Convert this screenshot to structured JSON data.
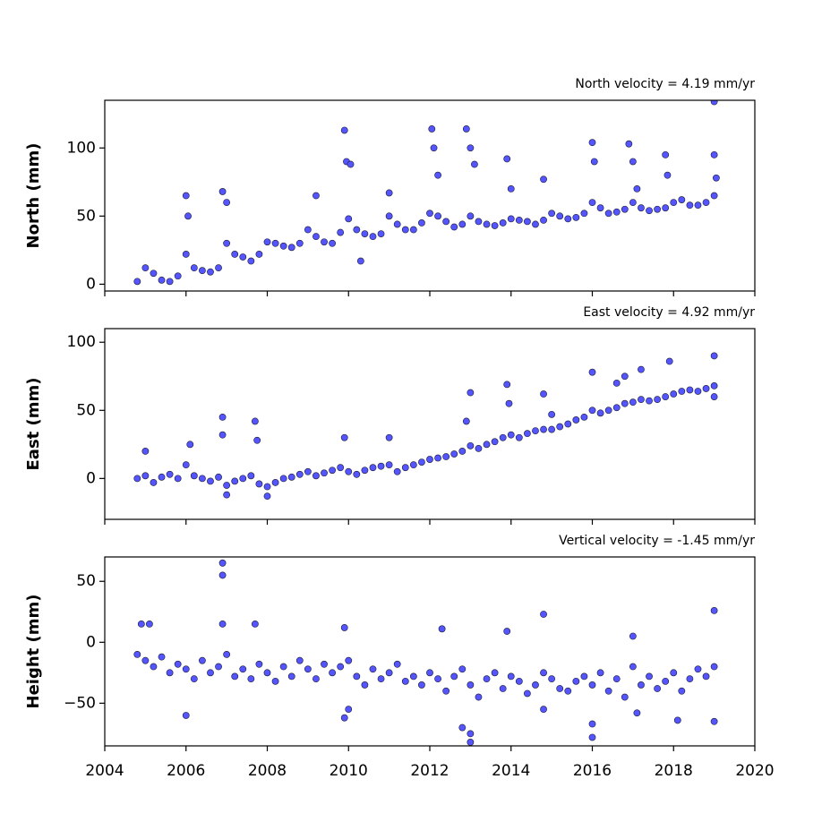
{
  "chart_data": [
    {
      "type": "scatter",
      "annotation": "North velocity = 4.19 mm/yr",
      "y_label": "North (mm)",
      "color": "#5555ff",
      "x": [
        2004.8,
        2005.0,
        2005.2,
        2005.4,
        2005.6,
        2005.8,
        2006.0,
        2006.2,
        2006.4,
        2006.6,
        2006.8,
        2007.0,
        2007.2,
        2007.4,
        2007.6,
        2007.8,
        2008.0,
        2008.2,
        2008.4,
        2008.6,
        2008.8,
        2009.0,
        2009.2,
        2009.4,
        2009.6,
        2009.8,
        2010.0,
        2010.2,
        2010.4,
        2010.6,
        2010.8,
        2011.0,
        2011.2,
        2011.4,
        2011.6,
        2011.8,
        2012.0,
        2012.2,
        2012.4,
        2012.6,
        2012.8,
        2013.0,
        2013.2,
        2013.4,
        2013.6,
        2013.8,
        2014.0,
        2014.2,
        2014.4,
        2014.6,
        2014.8,
        2015.0,
        2015.2,
        2015.4,
        2015.6,
        2015.8,
        2016.0,
        2016.2,
        2016.4,
        2016.6,
        2016.8,
        2017.0,
        2017.2,
        2017.4,
        2017.6,
        2017.8,
        2018.0,
        2018.2,
        2018.4,
        2018.6,
        2018.8,
        2019.0,
        2006.0,
        2006.05,
        2006.9,
        2007.0,
        2009.2,
        2009.9,
        2009.95,
        2010.05,
        2010.3,
        2011.0,
        2012.05,
        2012.1,
        2012.2,
        2012.9,
        2013.0,
        2013.1,
        2013.9,
        2014.0,
        2014.8,
        2016.0,
        2016.05,
        2016.9,
        2017.0,
        2017.1,
        2017.8,
        2017.85,
        2019.0,
        2019.0,
        2019.05
      ],
      "values": [
        2,
        12,
        8,
        3,
        2,
        6,
        22,
        12,
        10,
        9,
        12,
        30,
        22,
        20,
        17,
        22,
        31,
        30,
        28,
        27,
        30,
        40,
        35,
        31,
        30,
        38,
        48,
        40,
        37,
        35,
        37,
        50,
        44,
        40,
        40,
        45,
        52,
        50,
        46,
        42,
        44,
        50,
        46,
        44,
        43,
        45,
        48,
        47,
        46,
        44,
        47,
        52,
        50,
        48,
        49,
        52,
        60,
        56,
        52,
        53,
        55,
        60,
        56,
        54,
        55,
        56,
        60,
        62,
        58,
        58,
        60,
        65,
        65,
        50,
        68,
        60,
        65,
        113,
        90,
        88,
        17,
        67,
        114,
        100,
        80,
        114,
        100,
        88,
        92,
        70,
        77,
        104,
        90,
        103,
        90,
        70,
        95,
        80,
        134,
        95,
        78
      ],
      "xlim": [
        2004,
        2020
      ],
      "xticks": [
        2004,
        2006,
        2008,
        2010,
        2012,
        2014,
        2016,
        2018,
        2020
      ],
      "xticklabels": false,
      "ylim": [
        -5,
        135
      ],
      "yticks": [
        0,
        50,
        100
      ]
    },
    {
      "type": "scatter",
      "annotation": "East velocity = 4.92 mm/yr",
      "y_label": "East (mm)",
      "color": "#5555ff",
      "x": [
        2004.8,
        2005.0,
        2005.2,
        2005.4,
        2005.6,
        2005.8,
        2006.0,
        2006.2,
        2006.4,
        2006.6,
        2006.8,
        2007.0,
        2007.2,
        2007.4,
        2007.6,
        2007.8,
        2008.0,
        2008.2,
        2008.4,
        2008.6,
        2008.8,
        2009.0,
        2009.2,
        2009.4,
        2009.6,
        2009.8,
        2010.0,
        2010.2,
        2010.4,
        2010.6,
        2010.8,
        2011.0,
        2011.2,
        2011.4,
        2011.6,
        2011.8,
        2012.0,
        2012.2,
        2012.4,
        2012.6,
        2012.8,
        2013.0,
        2013.2,
        2013.4,
        2013.6,
        2013.8,
        2014.0,
        2014.2,
        2014.4,
        2014.6,
        2014.8,
        2015.0,
        2015.2,
        2015.4,
        2015.6,
        2015.8,
        2016.0,
        2016.2,
        2016.4,
        2016.6,
        2016.8,
        2017.0,
        2017.2,
        2017.4,
        2017.6,
        2017.8,
        2018.0,
        2018.2,
        2018.4,
        2018.6,
        2018.8,
        2019.0,
        2005.0,
        2006.1,
        2006.9,
        2006.9,
        2007.7,
        2007.75,
        2009.9,
        2011.0,
        2012.9,
        2013.0,
        2013.9,
        2013.95,
        2014.8,
        2015.0,
        2016.0,
        2016.6,
        2016.8,
        2017.2,
        2017.9,
        2019.0,
        2019.0,
        2007.0,
        2008.0
      ],
      "values": [
        0,
        2,
        -3,
        1,
        3,
        0,
        10,
        2,
        0,
        -2,
        1,
        -5,
        -2,
        0,
        2,
        -4,
        -6,
        -3,
        0,
        1,
        3,
        5,
        2,
        4,
        6,
        8,
        5,
        3,
        6,
        8,
        9,
        10,
        5,
        8,
        10,
        12,
        14,
        15,
        16,
        18,
        20,
        24,
        22,
        25,
        27,
        30,
        32,
        30,
        33,
        35,
        36,
        36,
        38,
        40,
        43,
        45,
        50,
        48,
        50,
        52,
        55,
        56,
        58,
        57,
        58,
        60,
        62,
        64,
        65,
        64,
        66,
        68,
        20,
        25,
        45,
        32,
        42,
        28,
        30,
        30,
        42,
        63,
        69,
        55,
        62,
        47,
        78,
        70,
        75,
        80,
        86,
        90,
        60,
        -12,
        -13
      ],
      "xlim": [
        2004,
        2020
      ],
      "xticks": [
        2004,
        2006,
        2008,
        2010,
        2012,
        2014,
        2016,
        2018,
        2020
      ],
      "xticklabels": false,
      "ylim": [
        -30,
        110
      ],
      "yticks": [
        0,
        50,
        100
      ]
    },
    {
      "type": "scatter",
      "annotation": "Vertical velocity = -1.45 mm/yr",
      "y_label": "Height (mm)",
      "color": "#5555ff",
      "x": [
        2004.8,
        2005.0,
        2005.2,
        2005.4,
        2005.6,
        2005.8,
        2006.0,
        2006.2,
        2006.4,
        2006.6,
        2006.8,
        2007.0,
        2007.2,
        2007.4,
        2007.6,
        2007.8,
        2008.0,
        2008.2,
        2008.4,
        2008.6,
        2008.8,
        2009.0,
        2009.2,
        2009.4,
        2009.6,
        2009.8,
        2010.0,
        2010.2,
        2010.4,
        2010.6,
        2010.8,
        2011.0,
        2011.2,
        2011.4,
        2011.6,
        2011.8,
        2012.0,
        2012.2,
        2012.4,
        2012.6,
        2012.8,
        2013.0,
        2013.2,
        2013.4,
        2013.6,
        2013.8,
        2014.0,
        2014.2,
        2014.4,
        2014.6,
        2014.8,
        2015.0,
        2015.2,
        2015.4,
        2015.6,
        2015.8,
        2016.0,
        2016.2,
        2016.4,
        2016.6,
        2016.8,
        2017.0,
        2017.2,
        2017.4,
        2017.6,
        2017.8,
        2018.0,
        2018.2,
        2018.4,
        2018.6,
        2018.8,
        2019.0,
        2004.9,
        2005.1,
        2006.0,
        2006.9,
        2006.9,
        2006.9,
        2007.7,
        2009.9,
        2010.0,
        2009.9,
        2012.3,
        2013.0,
        2013.0,
        2013.9,
        2014.8,
        2014.8,
        2016.0,
        2016.0,
        2017.0,
        2017.1,
        2018.1,
        2019.0,
        2019.0,
        2012.8
      ],
      "values": [
        -10,
        -15,
        -20,
        -12,
        -25,
        -18,
        -22,
        -30,
        -15,
        -25,
        -20,
        -10,
        -28,
        -22,
        -30,
        -18,
        -25,
        -32,
        -20,
        -28,
        -15,
        -22,
        -30,
        -18,
        -25,
        -20,
        -15,
        -28,
        -35,
        -22,
        -30,
        -25,
        -18,
        -32,
        -28,
        -35,
        -25,
        -30,
        -40,
        -28,
        -22,
        -35,
        -45,
        -30,
        -25,
        -38,
        -28,
        -32,
        -42,
        -35,
        -25,
        -30,
        -38,
        -40,
        -32,
        -28,
        -35,
        -25,
        -40,
        -30,
        -45,
        -20,
        -35,
        -28,
        -38,
        -32,
        -25,
        -40,
        -30,
        -22,
        -28,
        -20,
        15,
        15,
        -60,
        65,
        55,
        15,
        15,
        -62,
        -55,
        12,
        11,
        -82,
        -75,
        9,
        23,
        -55,
        -78,
        -67,
        5,
        -58,
        -64,
        26,
        -65,
        -70
      ],
      "xlim": [
        2004,
        2020
      ],
      "xticks": [
        2004,
        2006,
        2008,
        2010,
        2012,
        2014,
        2016,
        2018,
        2020
      ],
      "xticklabels": true,
      "ylim": [
        -85,
        70
      ],
      "yticks": [
        {
          "value": -50,
          "label": "−50"
        },
        0,
        50
      ]
    }
  ]
}
